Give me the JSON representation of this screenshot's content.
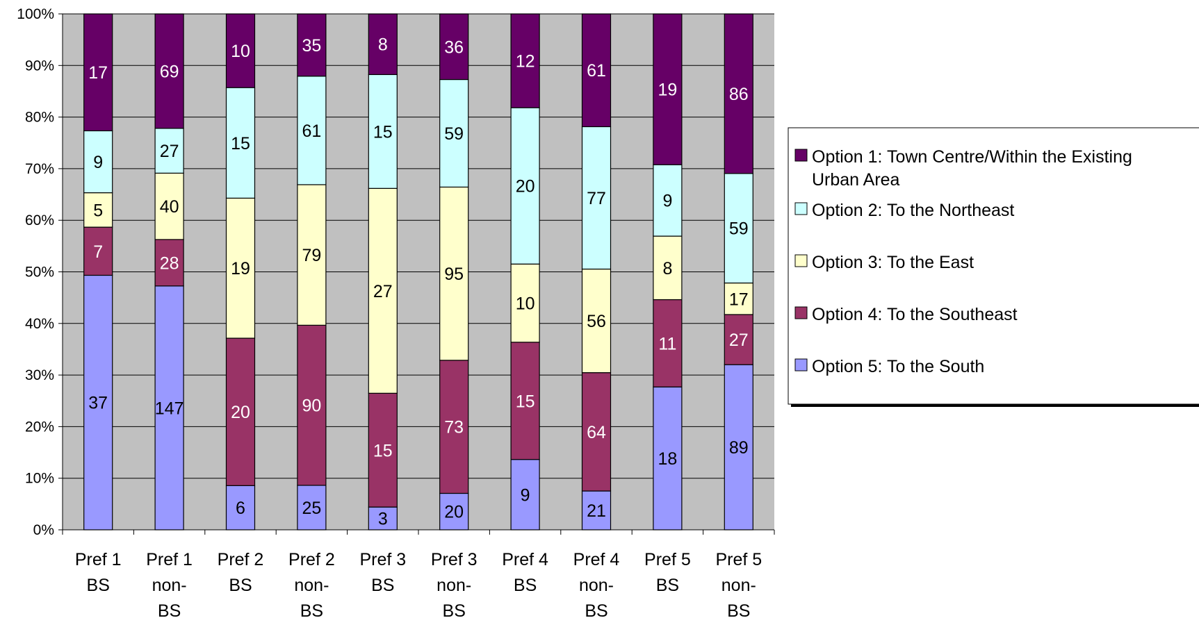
{
  "chart_data": {
    "type": "bar",
    "stacked": "percent",
    "categories": [
      [
        "Pref 1",
        "BS"
      ],
      [
        "Pref 1",
        "non-",
        "BS"
      ],
      [
        "Pref 2",
        "BS"
      ],
      [
        "Pref 2",
        "non-",
        "BS"
      ],
      [
        "Pref 3",
        "BS"
      ],
      [
        "Pref 3",
        "non-",
        "BS"
      ],
      [
        "Pref 4",
        "BS"
      ],
      [
        "Pref 4",
        "non-",
        "BS"
      ],
      [
        "Pref 5",
        "BS"
      ],
      [
        "Pref 5",
        "non-",
        "BS"
      ]
    ],
    "ylim": [
      0,
      100
    ],
    "yticks": [
      "0%",
      "10%",
      "20%",
      "30%",
      "40%",
      "50%",
      "60%",
      "70%",
      "80%",
      "90%",
      "100%"
    ],
    "grid": true,
    "legend_position": "right",
    "series": [
      {
        "name": "Option 5: To the South",
        "color": "#9999ff",
        "label_color": "#000000",
        "values": [
          37,
          147,
          6,
          25,
          3,
          20,
          9,
          21,
          18,
          89
        ]
      },
      {
        "name": "Option 4: To the Southeast",
        "color": "#993366",
        "label_color": "#ffffff",
        "values": [
          7,
          28,
          20,
          90,
          15,
          73,
          15,
          64,
          11,
          27
        ]
      },
      {
        "name": "Option 3: To the East",
        "color": "#ffffcc",
        "label_color": "#000000",
        "values": [
          5,
          40,
          19,
          79,
          27,
          95,
          10,
          56,
          8,
          17
        ]
      },
      {
        "name": "Option 2: To the Northeast",
        "color": "#ccffff",
        "label_color": "#000000",
        "values": [
          9,
          27,
          15,
          61,
          15,
          59,
          20,
          77,
          9,
          59
        ]
      },
      {
        "name": "Option 1: Town Centre/Within the Existing Urban Area",
        "color": "#660066",
        "label_color": "#ffffff",
        "values": [
          17,
          69,
          10,
          35,
          8,
          36,
          12,
          61,
          19,
          86
        ]
      }
    ],
    "legend_order": [
      4,
      3,
      2,
      1,
      0
    ],
    "legend_lines": [
      [
        "Option 1: Town Centre/Within the Existing",
        "Urban Area"
      ],
      [
        "Option 2: To the Northeast"
      ],
      [
        "Option 3: To the East"
      ],
      [
        "Option 4: To the Southeast"
      ],
      [
        "Option 5: To the South"
      ]
    ]
  }
}
